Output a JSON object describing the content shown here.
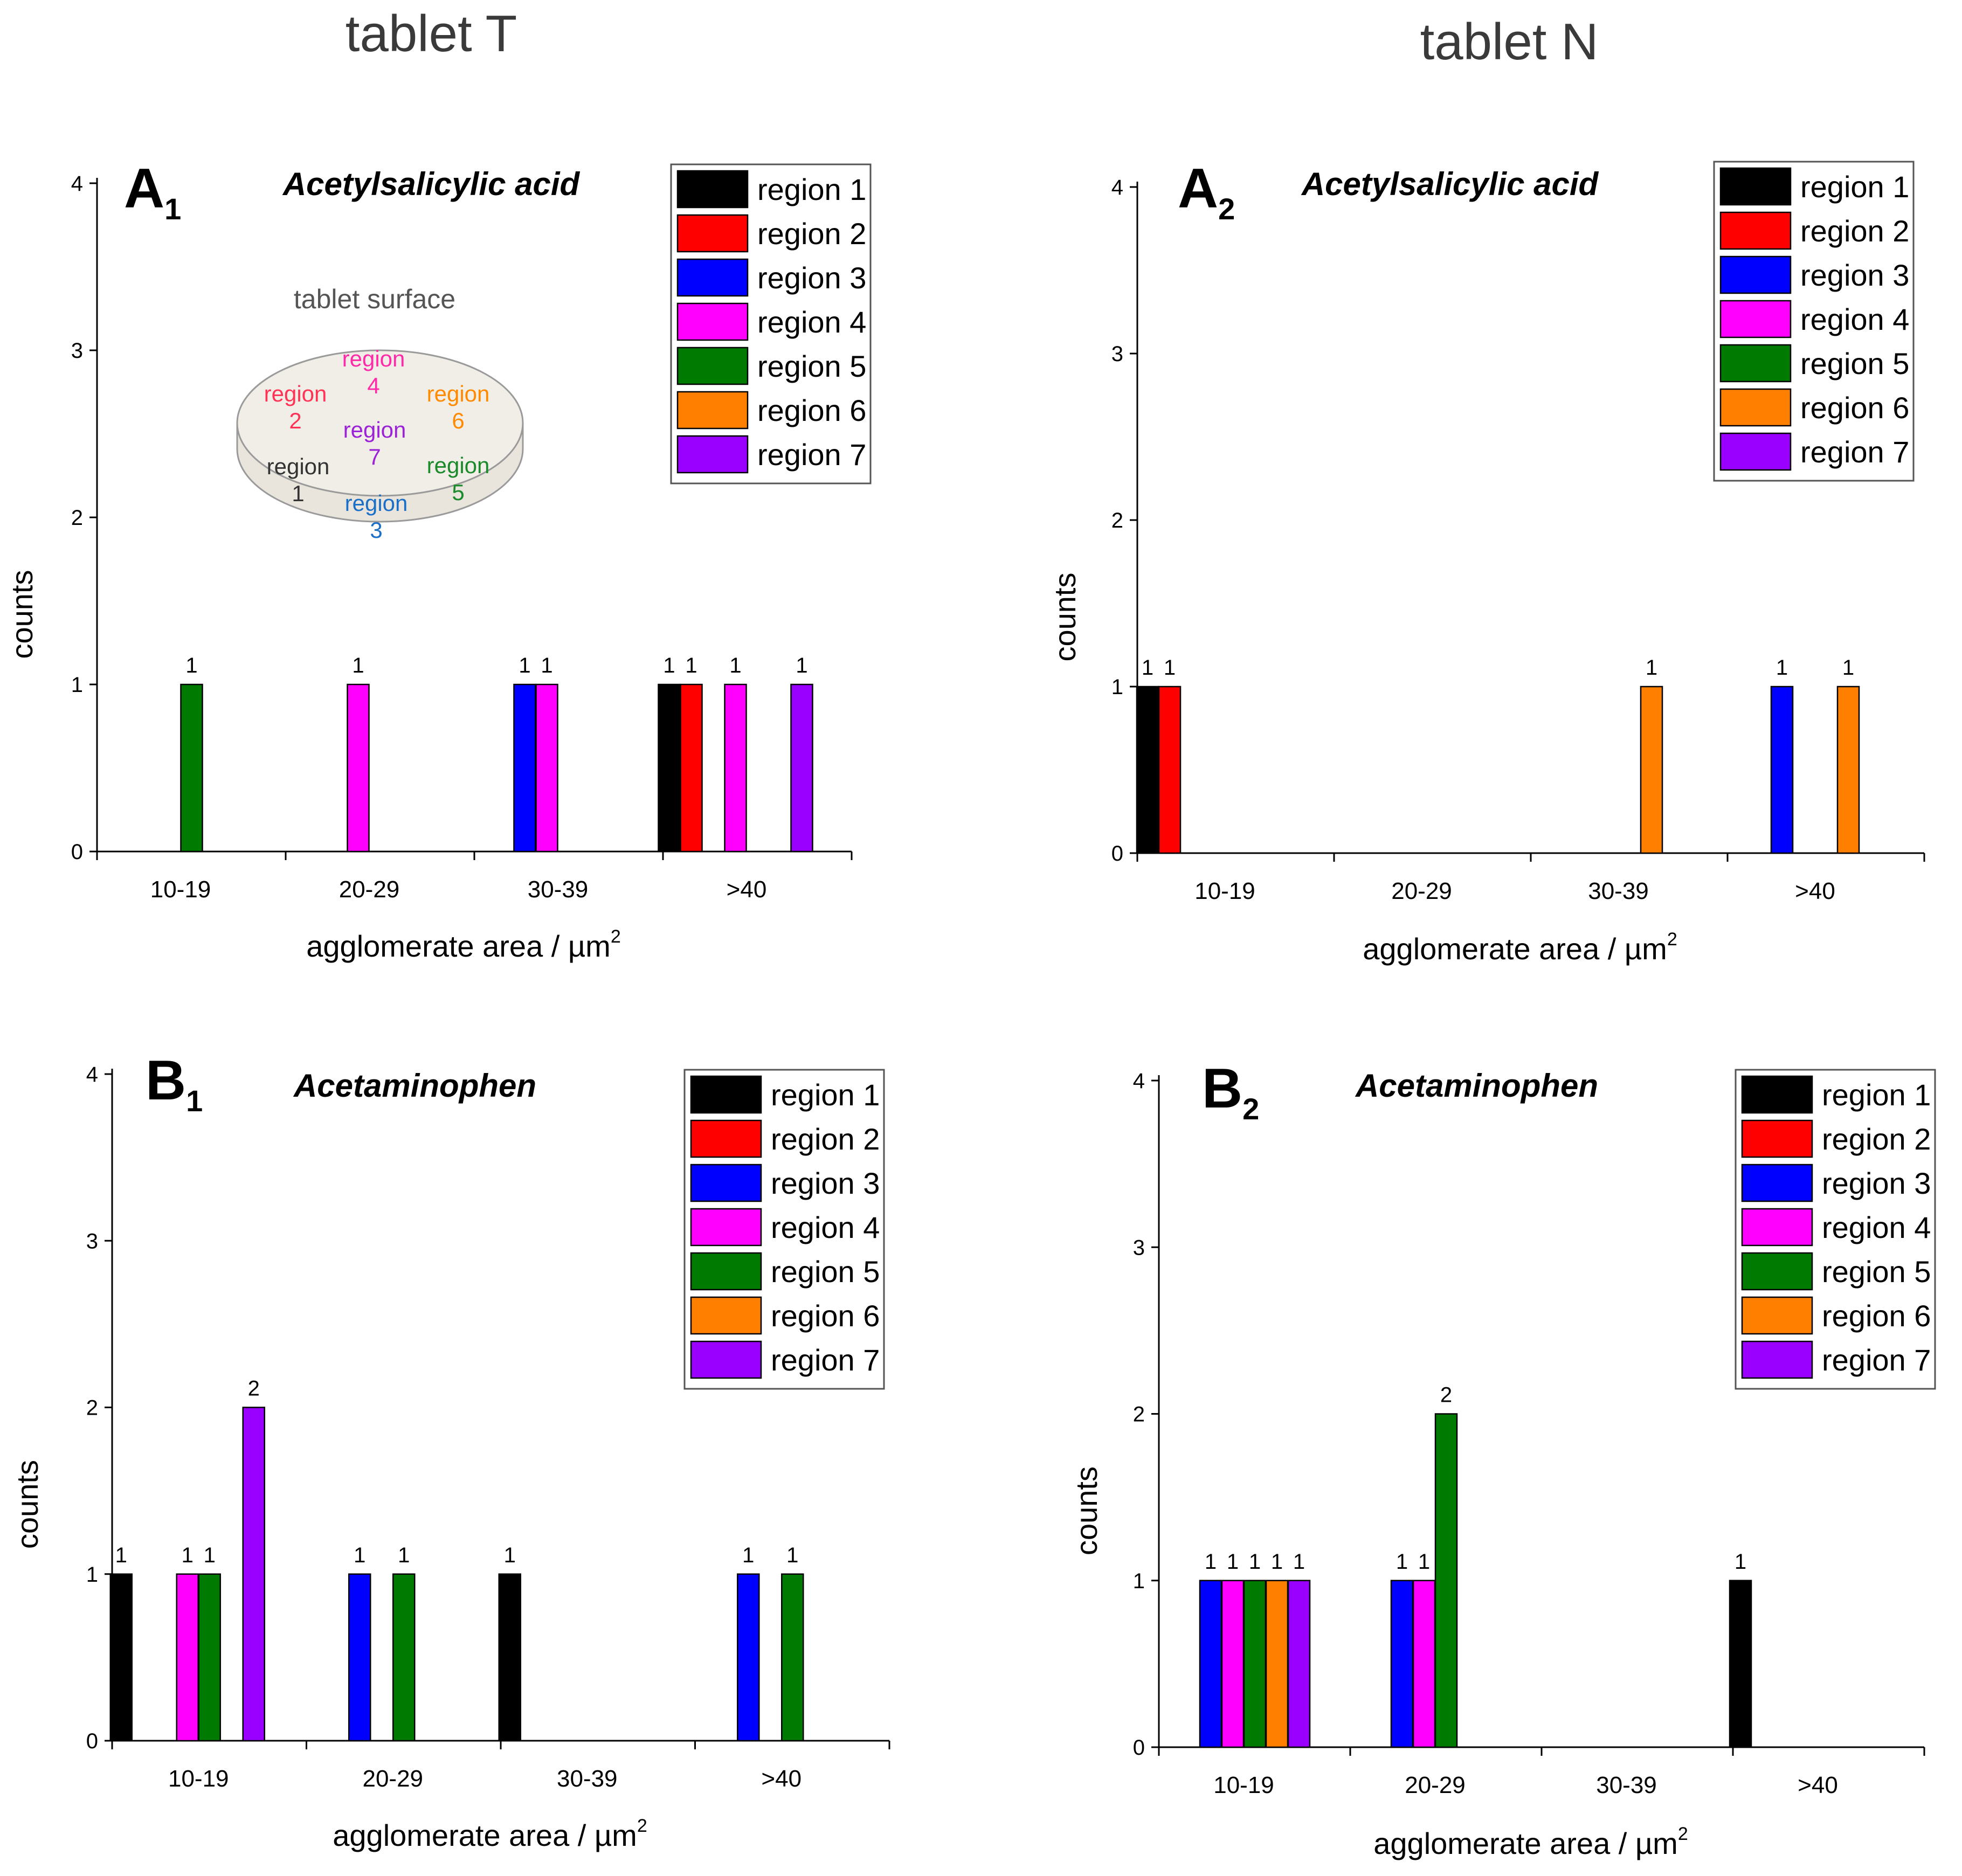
{
  "figure": {
    "column_titles": [
      "tablet T",
      "tablet N"
    ],
    "legend_entries": [
      "region 1",
      "region 2",
      "region 3",
      "region 4",
      "region 5",
      "region 6",
      "region 7"
    ],
    "region_colors": [
      "#000000",
      "#ff0000",
      "#0000ff",
      "#ff00ff",
      "#007a00",
      "#ff8000",
      "#9900ff"
    ],
    "inset": {
      "title": "tablet surface",
      "labels": [
        {
          "word": "region",
          "num": "1",
          "color": "#333333"
        },
        {
          "word": "region",
          "num": "2",
          "color": "#ff3355"
        },
        {
          "word": "region",
          "num": "3",
          "color": "#1a6fc7"
        },
        {
          "word": "region",
          "num": "4",
          "color": "#ff2aa8"
        },
        {
          "word": "region",
          "num": "5",
          "color": "#1a8a2a"
        },
        {
          "word": "region",
          "num": "6",
          "color": "#ff8a00"
        },
        {
          "word": "region",
          "num": "7",
          "color": "#9b22d6"
        }
      ]
    }
  },
  "chart_data": [
    {
      "type": "bar",
      "panel_letter": "A",
      "panel_sub": "1",
      "title": "Acetylsalicylic acid",
      "categories": [
        "10-19",
        "20-29",
        "30-39",
        ">40"
      ],
      "xlabel": "agglomerate area / µm",
      "xlabel_sup": "2",
      "ylabel": "counts",
      "ylim": [
        0,
        4
      ],
      "yticks": [
        "0",
        "1",
        "2",
        "3",
        "4"
      ],
      "legend_position": "top-right",
      "series": [
        {
          "name": "region 1",
          "values": [
            0,
            0,
            0,
            1
          ]
        },
        {
          "name": "region 2",
          "values": [
            0,
            0,
            0,
            1
          ]
        },
        {
          "name": "region 3",
          "values": [
            0,
            0,
            1,
            0
          ]
        },
        {
          "name": "region 4",
          "values": [
            0,
            1,
            1,
            1
          ]
        },
        {
          "name": "region 5",
          "values": [
            1,
            0,
            0,
            0
          ]
        },
        {
          "name": "region 6",
          "values": [
            0,
            0,
            0,
            0
          ]
        },
        {
          "name": "region 7",
          "values": [
            0,
            0,
            0,
            1
          ]
        }
      ]
    },
    {
      "type": "bar",
      "panel_letter": "A",
      "panel_sub": "2",
      "title": "Acetylsalicylic acid",
      "categories": [
        "10-19",
        "20-29",
        "30-39",
        ">40"
      ],
      "xlabel": "agglomerate area / µm",
      "xlabel_sup": "2",
      "ylabel": "counts",
      "ylim": [
        0,
        4
      ],
      "yticks": [
        "0",
        "1",
        "2",
        "3",
        "4"
      ],
      "legend_position": "top-right",
      "series": [
        {
          "name": "region 1",
          "values": [
            1,
            0,
            0,
            0
          ]
        },
        {
          "name": "region 2",
          "values": [
            1,
            0,
            0,
            0
          ]
        },
        {
          "name": "region 3",
          "values": [
            0,
            0,
            0,
            1
          ]
        },
        {
          "name": "region 4",
          "values": [
            0,
            0,
            0,
            0
          ]
        },
        {
          "name": "region 5",
          "values": [
            0,
            0,
            0,
            0
          ]
        },
        {
          "name": "region 6",
          "values": [
            0,
            0,
            1,
            1
          ]
        },
        {
          "name": "region 7",
          "values": [
            0,
            0,
            0,
            0
          ]
        }
      ]
    },
    {
      "type": "bar",
      "panel_letter": "B",
      "panel_sub": "1",
      "title": "Acetaminophen",
      "categories": [
        "10-19",
        "20-29",
        "30-39",
        ">40"
      ],
      "xlabel": "agglomerate area / µm",
      "xlabel_sup": "2",
      "ylabel": "counts",
      "ylim": [
        0,
        4
      ],
      "yticks": [
        "0",
        "1",
        "2",
        "3",
        "4"
      ],
      "legend_position": "top-right",
      "series": [
        {
          "name": "region 1",
          "values": [
            1,
            0,
            1,
            0
          ]
        },
        {
          "name": "region 2",
          "values": [
            0,
            0,
            0,
            0
          ]
        },
        {
          "name": "region 3",
          "values": [
            0,
            1,
            0,
            1
          ]
        },
        {
          "name": "region 4",
          "values": [
            1,
            0,
            0,
            0
          ]
        },
        {
          "name": "region 5",
          "values": [
            1,
            1,
            0,
            1
          ]
        },
        {
          "name": "region 6",
          "values": [
            0,
            0,
            0,
            0
          ]
        },
        {
          "name": "region 7",
          "values": [
            2,
            0,
            0,
            0
          ]
        }
      ]
    },
    {
      "type": "bar",
      "panel_letter": "B",
      "panel_sub": "2",
      "title": "Acetaminophen",
      "categories": [
        "10-19",
        "20-29",
        "30-39",
        ">40"
      ],
      "xlabel": "agglomerate area / µm",
      "xlabel_sup": "2",
      "ylabel": "counts",
      "ylim": [
        0,
        4
      ],
      "yticks": [
        "0",
        "1",
        "2",
        "3",
        "4"
      ],
      "legend_position": "top-right",
      "series": [
        {
          "name": "region 1",
          "values": [
            0,
            0,
            0,
            1
          ]
        },
        {
          "name": "region 2",
          "values": [
            0,
            0,
            0,
            0
          ]
        },
        {
          "name": "region 3",
          "values": [
            1,
            1,
            0,
            0
          ]
        },
        {
          "name": "region 4",
          "values": [
            1,
            1,
            0,
            0
          ]
        },
        {
          "name": "region 5",
          "values": [
            1,
            2,
            0,
            0
          ]
        },
        {
          "name": "region 6",
          "values": [
            1,
            0,
            0,
            0
          ]
        },
        {
          "name": "region 7",
          "values": [
            1,
            0,
            0,
            0
          ]
        }
      ]
    }
  ]
}
